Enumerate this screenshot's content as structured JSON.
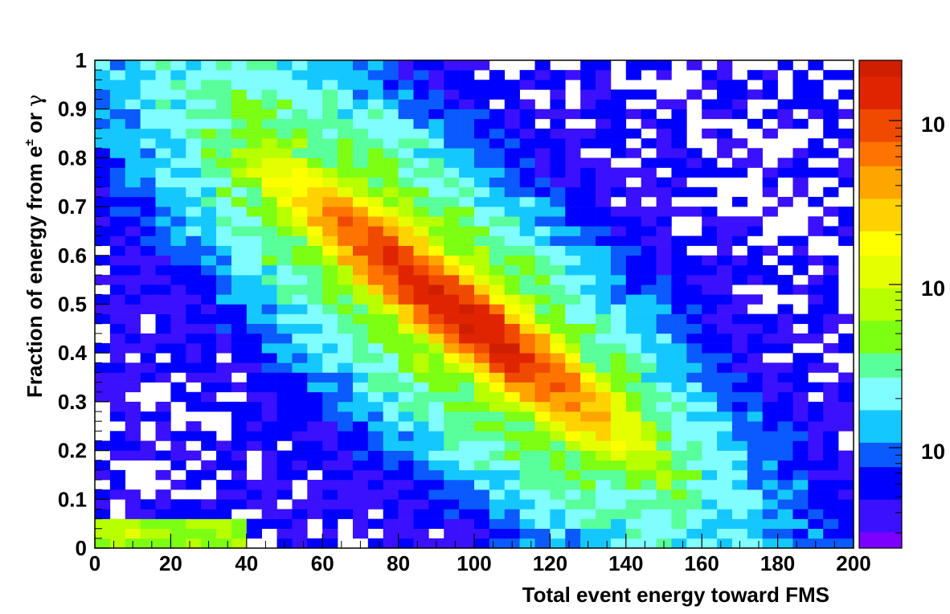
{
  "chart_data": {
    "type": "heatmap",
    "title": "",
    "xlabel": "Total event energy toward FMS",
    "ylabel_parts": {
      "pre": "Fraction of energy from e",
      "sup": "±",
      "mid": " or ",
      "greek": "γ"
    },
    "xlim": [
      0,
      200
    ],
    "ylim": [
      0,
      1
    ],
    "x_ticks": [
      0,
      20,
      40,
      60,
      80,
      100,
      120,
      140,
      160,
      180,
      200
    ],
    "y_ticks": [
      0,
      0.1,
      0.2,
      0.3,
      0.4,
      0.5,
      0.6,
      0.7,
      0.8,
      0.9,
      1
    ],
    "y_tick_labels": [
      "0",
      "0.1",
      "0.2",
      "0.3",
      "0.4",
      "0.5",
      "0.6",
      "0.7",
      "0.8",
      "0.9",
      "1"
    ],
    "x_tick_labels": [
      "0",
      "20",
      "40",
      "60",
      "80",
      "100",
      "120",
      "140",
      "160",
      "180",
      "200"
    ],
    "x_bins": 50,
    "y_bins": 50,
    "z_scale": "log",
    "colorbar_labels_visible": [
      "10",
      "10",
      "10"
    ],
    "density_model": {
      "peak_x": 95,
      "peak_y": 0.48,
      "log10_peak": 3.3,
      "description_free": true
    },
    "palette": [
      "#7a00ff",
      "#3a10ff",
      "#0000ff",
      "#0a5aff",
      "#14c8ff",
      "#7ffdff",
      "#58ff9a",
      "#7dff14",
      "#b8ff00",
      "#e6ff00",
      "#ffff00",
      "#ffd200",
      "#ffa500",
      "#ff7300",
      "#f04a00",
      "#e02400",
      "#d01e00"
    ],
    "grid": false,
    "legend": "colorbar-right"
  }
}
